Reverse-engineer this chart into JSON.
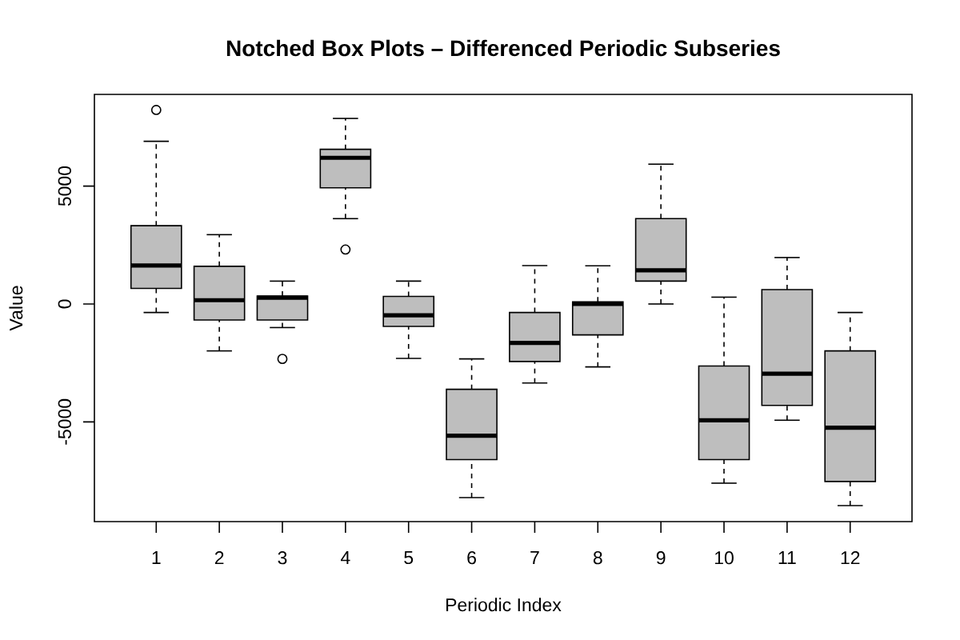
{
  "chart_data": {
    "type": "box",
    "title": "Notched Box Plots – Differenced Periodic Subseries",
    "xlabel": "Periodic Index",
    "ylabel": "Value",
    "categories": [
      "1",
      "2",
      "3",
      "4",
      "5",
      "6",
      "7",
      "8",
      "9",
      "10",
      "11",
      "12"
    ],
    "boxes": [
      {
        "low": -360,
        "q1": 660,
        "median": 1630,
        "q3": 3320,
        "high": 6900,
        "outliers": [
          8230
        ]
      },
      {
        "low": -1990,
        "q1": -680,
        "median": 160,
        "q3": 1600,
        "high": 2940
      },
      {
        "low": -1000,
        "q1": -680,
        "median": 270,
        "q3": 340,
        "high": 970,
        "outliers": [
          -2330
        ]
      },
      {
        "low": 3620,
        "q1": 4930,
        "median": 6200,
        "q3": 6560,
        "high": 7870,
        "outliers": [
          2310
        ]
      },
      {
        "low": -2310,
        "q1": -950,
        "median": -480,
        "q3": 320,
        "high": 970
      },
      {
        "low": -8210,
        "q1": -6600,
        "median": -5590,
        "q3": -3620,
        "high": -2330
      },
      {
        "low": -3350,
        "q1": -2440,
        "median": -1650,
        "q3": -360,
        "high": 1630
      },
      {
        "low": -2670,
        "q1": -1310,
        "median": 0,
        "q3": 90,
        "high": 1620
      },
      {
        "low": 0,
        "q1": 970,
        "median": 1430,
        "q3": 3620,
        "high": 5930
      },
      {
        "low": -7600,
        "q1": -6600,
        "median": -4930,
        "q3": -2630,
        "high": 290
      },
      {
        "low": -4930,
        "q1": -4300,
        "median": -2960,
        "q3": 610,
        "high": 1970
      },
      {
        "low": -8550,
        "q1": -7530,
        "median": -5250,
        "q3": -1990,
        "high": -360
      }
    ],
    "color": "#bebebe",
    "marker": "circle",
    "ylim": [
      -9230,
      8890
    ],
    "yticks": [
      -5000,
      0,
      5000
    ]
  }
}
